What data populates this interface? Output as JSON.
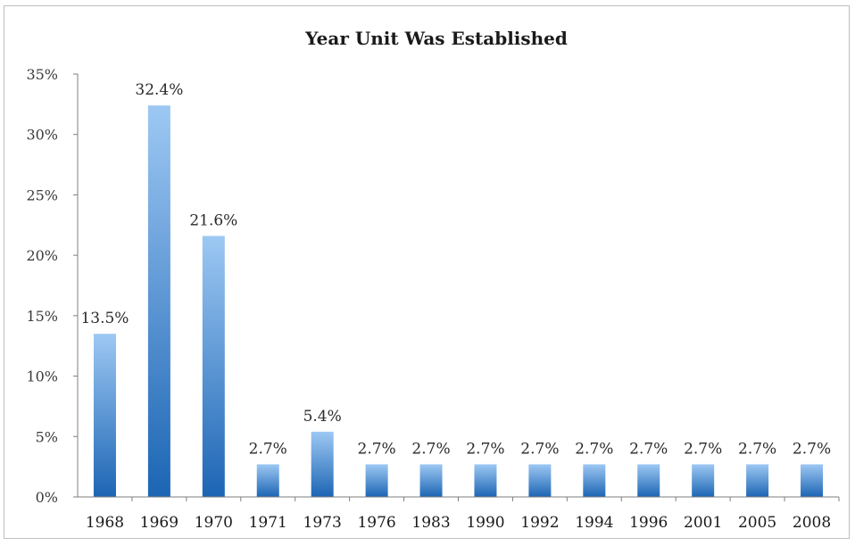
{
  "chart_data": {
    "type": "bar",
    "title": "Year Unit Was Established",
    "xlabel": "",
    "ylabel": "",
    "categories": [
      "1968",
      "1969",
      "1970",
      "1971",
      "1973",
      "1976",
      "1983",
      "1990",
      "1992",
      "1994",
      "1996",
      "2001",
      "2005",
      "2008"
    ],
    "values": [
      13.5,
      32.4,
      21.6,
      2.7,
      5.4,
      2.7,
      2.7,
      2.7,
      2.7,
      2.7,
      2.7,
      2.7,
      2.7,
      2.7
    ],
    "data_labels": [
      "13.5%",
      "32.4%",
      "21.6%",
      "2.7%",
      "5.4%",
      "2.7%",
      "2.7%",
      "2.7%",
      "2.7%",
      "2.7%",
      "2.7%",
      "2.7%",
      "2.7%",
      "2.7%"
    ],
    "ylim": [
      0,
      35
    ],
    "y_ticks": [
      0,
      5,
      10,
      15,
      20,
      25,
      30,
      35
    ],
    "y_tick_labels": [
      "0%",
      "5%",
      "10%",
      "15%",
      "20%",
      "25%",
      "30%",
      "35%"
    ],
    "grid": false,
    "legend": "none",
    "colors": {
      "bar_top": "#9dc8f3",
      "bar_bottom": "#1c65b4",
      "axis": "#7f7f7f"
    }
  }
}
